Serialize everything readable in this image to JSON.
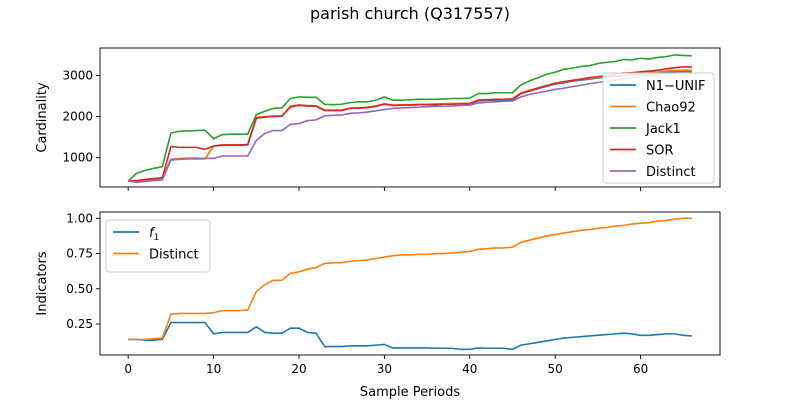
{
  "figure": {
    "title": "parish church (Q317557)"
  },
  "colors": {
    "blue": "#1f77b4",
    "orange": "#ff7f0e",
    "green": "#2ca02c",
    "red": "#d62728",
    "purple": "#9467bd"
  },
  "chart_data": [
    {
      "type": "line",
      "title": "",
      "xlabel": "",
      "ylabel": "Cardinality",
      "xlim": [
        -3.3,
        69.3
      ],
      "ylim": [
        285,
        3670
      ],
      "xticks": [
        0,
        10,
        20,
        30,
        40,
        50,
        60
      ],
      "show_xticklabels": false,
      "yticks": [
        1000,
        2000,
        3000
      ],
      "yticklabels": [
        "1000",
        "2000",
        "3000"
      ],
      "grid": false,
      "legend": "lower-right",
      "x": [
        0,
        1,
        2,
        3,
        4,
        5,
        6,
        7,
        8,
        9,
        10,
        11,
        12,
        13,
        14,
        15,
        16,
        17,
        18,
        19,
        20,
        21,
        22,
        23,
        24,
        25,
        26,
        27,
        28,
        29,
        30,
        31,
        32,
        33,
        34,
        35,
        36,
        37,
        38,
        39,
        40,
        41,
        42,
        43,
        44,
        45,
        46,
        47,
        48,
        49,
        50,
        51,
        52,
        53,
        54,
        55,
        56,
        57,
        58,
        59,
        60,
        61,
        62,
        63,
        64,
        65,
        66
      ],
      "series": [
        {
          "name": "N1−UNIF",
          "color": "#1f77b4",
          "values": [
            430,
            430,
            450,
            470,
            500,
            960,
            965,
            970,
            970,
            970,
            1280,
            1300,
            1300,
            1300,
            1310,
            1960,
            1990,
            2000,
            2010,
            2250,
            2270,
            2260,
            2250,
            2150,
            2150,
            2150,
            2200,
            2200,
            2220,
            2250,
            2300,
            2270,
            2280,
            2280,
            2290,
            2290,
            2300,
            2300,
            2310,
            2310,
            2320,
            2380,
            2400,
            2400,
            2400,
            2410,
            2560,
            2620,
            2680,
            2740,
            2790,
            2820,
            2860,
            2890,
            2910,
            2940,
            2960,
            2980,
            3000,
            3010,
            3030,
            3050,
            3060,
            3080,
            3090,
            3100,
            3100
          ]
        },
        {
          "name": "Chao92",
          "color": "#ff7f0e",
          "values": [
            430,
            430,
            460,
            480,
            510,
            960,
            980,
            990,
            990,
            970,
            1280,
            1310,
            1310,
            1310,
            1320,
            1980,
            2000,
            2010,
            2020,
            2260,
            2280,
            2270,
            2260,
            2160,
            2160,
            2160,
            2210,
            2210,
            2230,
            2260,
            2310,
            2280,
            2290,
            2290,
            2300,
            2300,
            2310,
            2310,
            2320,
            2320,
            2330,
            2400,
            2410,
            2420,
            2420,
            2430,
            2580,
            2640,
            2700,
            2760,
            2810,
            2840,
            2880,
            2910,
            2930,
            2960,
            2980,
            3000,
            3020,
            3040,
            3060,
            3080,
            3090,
            3110,
            3120,
            3130,
            3130
          ]
        },
        {
          "name": "Jack1",
          "color": "#2ca02c",
          "values": [
            430,
            620,
            690,
            740,
            780,
            1600,
            1640,
            1650,
            1660,
            1670,
            1460,
            1560,
            1570,
            1570,
            1570,
            2050,
            2130,
            2200,
            2210,
            2440,
            2480,
            2470,
            2470,
            2300,
            2290,
            2300,
            2340,
            2360,
            2360,
            2400,
            2480,
            2400,
            2400,
            2410,
            2420,
            2420,
            2420,
            2430,
            2440,
            2440,
            2450,
            2560,
            2560,
            2580,
            2580,
            2580,
            2770,
            2870,
            2950,
            3030,
            3080,
            3150,
            3180,
            3220,
            3240,
            3290,
            3320,
            3340,
            3390,
            3380,
            3420,
            3400,
            3440,
            3460,
            3500,
            3490,
            3480
          ]
        },
        {
          "name": "SOR",
          "color": "#d62728",
          "values": [
            430,
            440,
            470,
            490,
            510,
            1270,
            1250,
            1250,
            1250,
            1200,
            1280,
            1310,
            1310,
            1310,
            1320,
            1960,
            1990,
            2010,
            2010,
            2230,
            2280,
            2260,
            2260,
            2150,
            2150,
            2150,
            2200,
            2210,
            2220,
            2250,
            2310,
            2270,
            2280,
            2280,
            2290,
            2290,
            2290,
            2300,
            2300,
            2310,
            2310,
            2400,
            2410,
            2420,
            2420,
            2430,
            2560,
            2630,
            2690,
            2750,
            2810,
            2850,
            2880,
            2910,
            2950,
            2970,
            3000,
            3030,
            3060,
            3070,
            3090,
            3110,
            3130,
            3160,
            3190,
            3210,
            3210
          ]
        },
        {
          "name": "Distinct",
          "color": "#9467bd",
          "values": [
            430,
            400,
            420,
            440,
            460,
            940,
            960,
            970,
            980,
            980,
            980,
            1040,
            1040,
            1040,
            1040,
            1420,
            1590,
            1660,
            1660,
            1810,
            1830,
            1900,
            1920,
            2020,
            2030,
            2040,
            2080,
            2090,
            2110,
            2140,
            2170,
            2200,
            2210,
            2220,
            2230,
            2240,
            2250,
            2250,
            2260,
            2270,
            2280,
            2330,
            2350,
            2360,
            2370,
            2380,
            2480,
            2540,
            2580,
            2620,
            2660,
            2690,
            2730,
            2760,
            2800,
            2830,
            2860,
            2890,
            2920,
            2950,
            2980,
            3000,
            3020,
            3040,
            3060,
            3080,
            3080
          ]
        }
      ]
    },
    {
      "type": "line",
      "title": "",
      "xlabel": "Sample Periods",
      "ylabel": "Indicators",
      "xlim": [
        -3.3,
        69.3
      ],
      "ylim": [
        0.03,
        1.045
      ],
      "xticks": [
        0,
        10,
        20,
        30,
        40,
        50,
        60
      ],
      "xticklabels": [
        "0",
        "10",
        "20",
        "30",
        "40",
        "50",
        "60"
      ],
      "yticks": [
        0.25,
        0.5,
        0.75,
        1.0
      ],
      "yticklabels": [
        "0.25",
        "0.50",
        "0.75",
        "1.00"
      ],
      "grid": false,
      "legend": "upper-left",
      "x": [
        0,
        1,
        2,
        3,
        4,
        5,
        6,
        7,
        8,
        9,
        10,
        11,
        12,
        13,
        14,
        15,
        16,
        17,
        18,
        19,
        20,
        21,
        22,
        23,
        24,
        25,
        26,
        27,
        28,
        29,
        30,
        31,
        32,
        33,
        34,
        35,
        36,
        37,
        38,
        39,
        40,
        41,
        42,
        43,
        44,
        45,
        46,
        47,
        48,
        49,
        50,
        51,
        52,
        53,
        54,
        55,
        56,
        57,
        58,
        59,
        60,
        61,
        62,
        63,
        64,
        65,
        66
      ],
      "series": [
        {
          "name": "f",
          "subscript": "1",
          "color": "#1f77b4",
          "values": [
            0.14,
            0.14,
            0.135,
            0.135,
            0.14,
            0.26,
            0.26,
            0.26,
            0.26,
            0.26,
            0.18,
            0.19,
            0.19,
            0.19,
            0.19,
            0.23,
            0.19,
            0.185,
            0.185,
            0.22,
            0.22,
            0.19,
            0.185,
            0.09,
            0.09,
            0.09,
            0.095,
            0.095,
            0.095,
            0.1,
            0.105,
            0.08,
            0.08,
            0.08,
            0.08,
            0.08,
            0.078,
            0.078,
            0.077,
            0.07,
            0.07,
            0.08,
            0.078,
            0.078,
            0.078,
            0.07,
            0.1,
            0.11,
            0.12,
            0.13,
            0.14,
            0.15,
            0.155,
            0.16,
            0.165,
            0.17,
            0.175,
            0.18,
            0.185,
            0.18,
            0.17,
            0.17,
            0.175,
            0.18,
            0.18,
            0.17,
            0.165
          ]
        },
        {
          "name": "Distinct",
          "color": "#ff7f0e",
          "values": [
            0.14,
            0.14,
            0.14,
            0.145,
            0.15,
            0.32,
            0.325,
            0.325,
            0.325,
            0.325,
            0.33,
            0.345,
            0.345,
            0.345,
            0.35,
            0.48,
            0.53,
            0.56,
            0.56,
            0.61,
            0.62,
            0.64,
            0.65,
            0.68,
            0.685,
            0.685,
            0.695,
            0.7,
            0.705,
            0.715,
            0.725,
            0.735,
            0.74,
            0.74,
            0.745,
            0.745,
            0.75,
            0.75,
            0.755,
            0.76,
            0.765,
            0.78,
            0.785,
            0.79,
            0.79,
            0.795,
            0.83,
            0.845,
            0.86,
            0.875,
            0.885,
            0.895,
            0.905,
            0.915,
            0.92,
            0.93,
            0.935,
            0.945,
            0.95,
            0.96,
            0.965,
            0.97,
            0.98,
            0.985,
            0.995,
            1.0,
            1.0
          ]
        }
      ]
    }
  ]
}
